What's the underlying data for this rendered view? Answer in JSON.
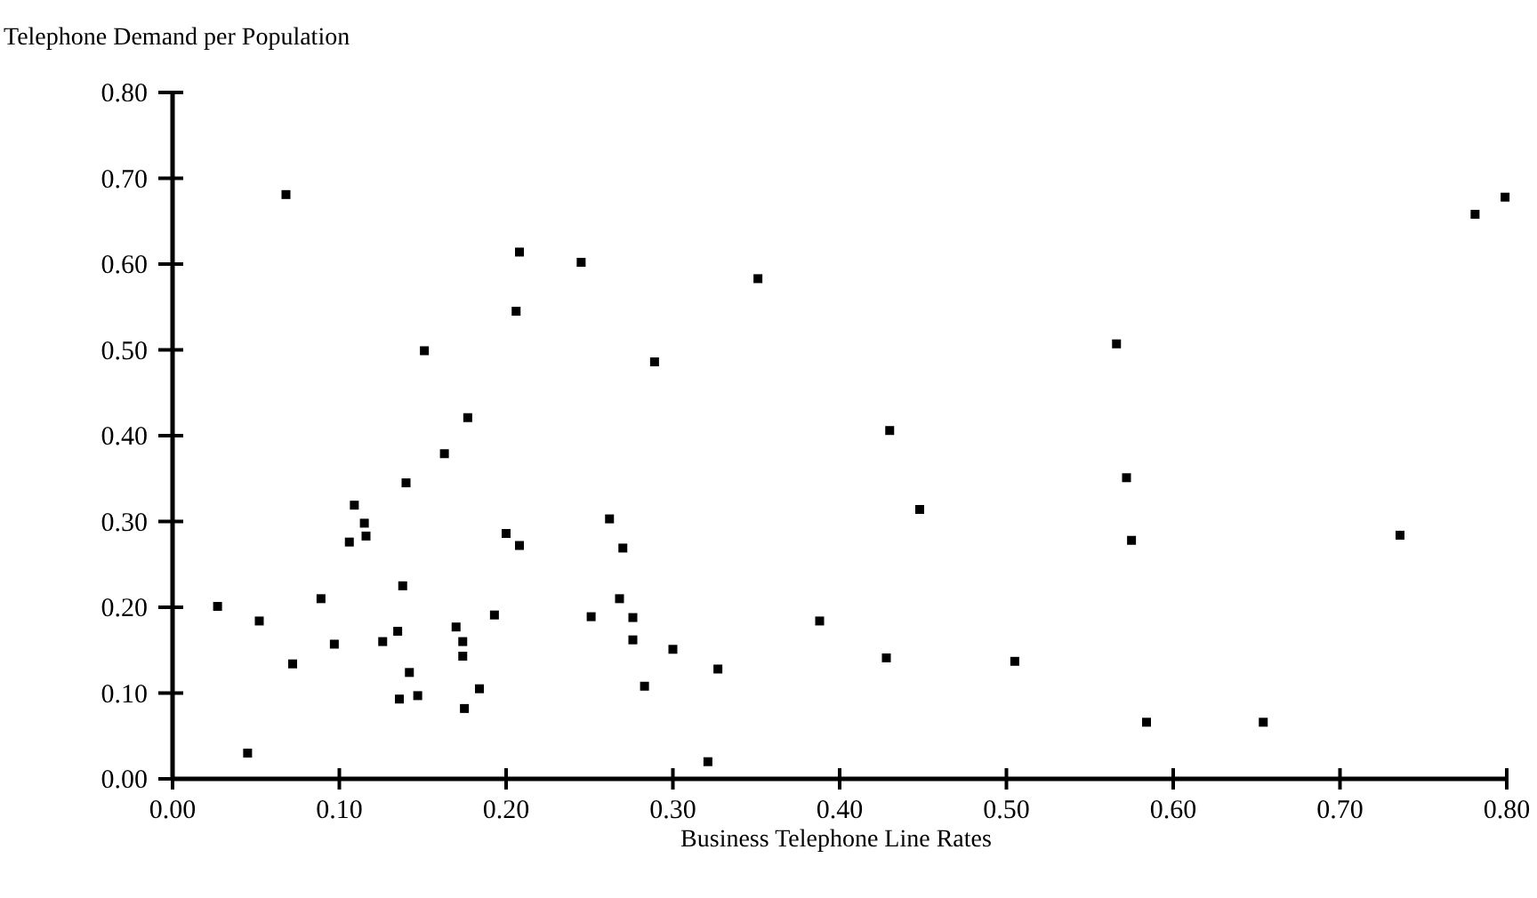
{
  "chart_data": {
    "type": "scatter",
    "ylabel": "Telephone Demand per Population",
    "xlabel": "Business Telephone Line Rates",
    "xlim": [
      0,
      0.8
    ],
    "ylim": [
      0,
      0.8
    ],
    "xticks": [
      {
        "value": 0,
        "label": "0.00"
      },
      {
        "value": 0.1,
        "label": "0.10"
      },
      {
        "value": 0.2,
        "label": "0.20"
      },
      {
        "value": 0.3,
        "label": "0.30"
      },
      {
        "value": 0.4,
        "label": "0.40"
      },
      {
        "value": 0.5,
        "label": "0.50"
      },
      {
        "value": 0.6,
        "label": "0.60"
      },
      {
        "value": 0.7,
        "label": "0.70"
      },
      {
        "value": 0.8,
        "label": "0.80"
      }
    ],
    "yticks": [
      {
        "value": 0,
        "label": "0.00"
      },
      {
        "value": 0.1,
        "label": "0.10"
      },
      {
        "value": 0.2,
        "label": "0.20"
      },
      {
        "value": 0.3,
        "label": "0.30"
      },
      {
        "value": 0.4,
        "label": "0.40"
      },
      {
        "value": 0.5,
        "label": "0.50"
      },
      {
        "value": 0.6,
        "label": "0.60"
      },
      {
        "value": 0.7,
        "label": "0.70"
      },
      {
        "value": 0.8,
        "label": "0.80"
      }
    ],
    "marker": "square",
    "grid": false,
    "series": [
      {
        "color": "#000000",
        "x": [
          0.068,
          0.208,
          0.245,
          0.206,
          0.151,
          0.289,
          0.177,
          0.163,
          0.14,
          0.109,
          0.115,
          0.116,
          0.106,
          0.2,
          0.208,
          0.262,
          0.27,
          0.138,
          0.089,
          0.027,
          0.268,
          0.052,
          0.193,
          0.251,
          0.276,
          0.135,
          0.17,
          0.126,
          0.097,
          0.174,
          0.174,
          0.276,
          0.072,
          0.142,
          0.184,
          0.283,
          0.147,
          0.136,
          0.175,
          0.045,
          0.351,
          0.43,
          0.448,
          0.388,
          0.3,
          0.327,
          0.428,
          0.505,
          0.321,
          0.799,
          0.781,
          0.566,
          0.572,
          0.575,
          0.736,
          0.584,
          0.654
        ],
        "values": [
          0.681,
          0.614,
          0.602,
          0.545,
          0.499,
          0.486,
          0.421,
          0.379,
          0.345,
          0.319,
          0.298,
          0.283,
          0.276,
          0.286,
          0.272,
          0.303,
          0.269,
          0.225,
          0.21,
          0.201,
          0.21,
          0.184,
          0.191,
          0.189,
          0.188,
          0.172,
          0.177,
          0.16,
          0.157,
          0.16,
          0.143,
          0.162,
          0.134,
          0.124,
          0.105,
          0.108,
          0.097,
          0.093,
          0.082,
          0.03,
          0.583,
          0.406,
          0.314,
          0.184,
          0.151,
          0.128,
          0.141,
          0.137,
          0.02,
          0.678,
          0.658,
          0.507,
          0.351,
          0.278,
          0.284,
          0.066,
          0.066
        ]
      }
    ]
  }
}
